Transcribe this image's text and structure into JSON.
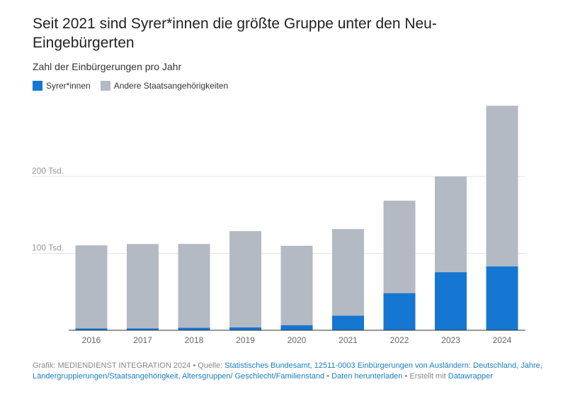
{
  "title": "Seit 2021 sind Syrer*innen die größte Gruppe unter den Neu-Eingebürgerten",
  "subtitle": "Zahl der Einbürgerungen pro Jahr",
  "footer": {
    "grafik": "Grafik: MEDIENDIENST INTEGRATION 2024 • Quelle: ",
    "source_link": "Statistisches Bundesamt, 12511-0003 Einbürgerungen von Ausländern: Deutschland, Jahre, Ländergruppierungen/Staatsangehörigkeit, Altersgruppen/ Geschlecht/Familienstand",
    "sep1": " • ",
    "download_link": "Daten herunterladen",
    "sep2": " • Erstellt mit ",
    "datawrapper_link": "Datawrapper"
  },
  "chart_data": {
    "type": "bar",
    "stacked": true,
    "categories": [
      "2016",
      "2017",
      "2018",
      "2019",
      "2020",
      "2021",
      "2022",
      "2023",
      "2024"
    ],
    "series": [
      {
        "name": "Syrer*innen",
        "color": "#1677d2",
        "values": [
          2300,
          2500,
          3200,
          3900,
          6700,
          19100,
          48300,
          75500,
          83200
        ]
      },
      {
        "name": "Andere Staatsangehörigkeiten",
        "color": "#b4bac4",
        "values": [
          108100,
          109700,
          109100,
          125000,
          103200,
          112500,
          120200,
          124600,
          208800
        ]
      }
    ],
    "yticks": [
      {
        "value": 100000,
        "label": "100 Tsd."
      },
      {
        "value": 200000,
        "label": "200 Tsd."
      }
    ],
    "ylim": [
      0,
      300000
    ],
    "grid": true,
    "legend": "top-left"
  }
}
